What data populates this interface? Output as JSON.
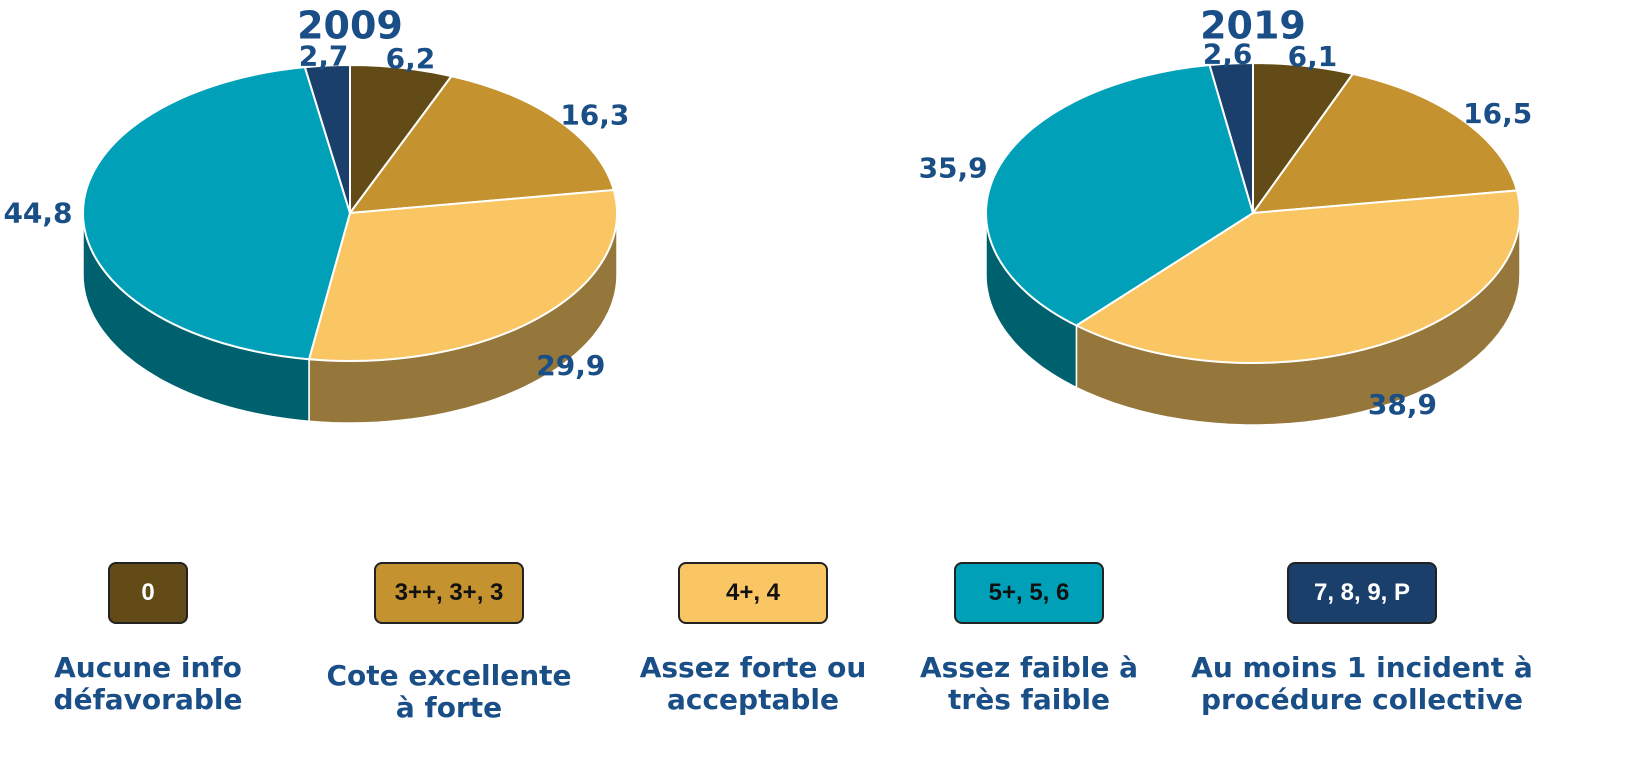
{
  "chart_data": [
    {
      "type": "pie",
      "title": "2009",
      "values": [
        6.2,
        16.3,
        29.9,
        44.8,
        2.7
      ],
      "value_labels": [
        "6,2",
        "16,3",
        "29,9",
        "44,8",
        "2,7"
      ]
    },
    {
      "type": "pie",
      "title": "2019",
      "values": [
        6.1,
        16.5,
        38.9,
        35.9,
        2.6
      ],
      "value_labels": [
        "6,1",
        "16,5",
        "38,9",
        "35,9",
        "2,6"
      ]
    }
  ],
  "legend": {
    "items": [
      {
        "code": "0",
        "description": "Aucune info défavorable",
        "color": "#634b17"
      },
      {
        "code": "3++, 3+, 3",
        "description": "Cote excellente à forte",
        "color": "#c4922e"
      },
      {
        "code": "4+, 4",
        "description": "Assez forte ou acceptable",
        "color": "#f9c663"
      },
      {
        "code": "5+, 5, 6",
        "description": "Assez faible à très faible",
        "color": "#00a1b8"
      },
      {
        "code": "7, 8, 9, P",
        "description": "Au moins 1 incident à procédure collective",
        "color": "#1b3f6b"
      }
    ]
  }
}
